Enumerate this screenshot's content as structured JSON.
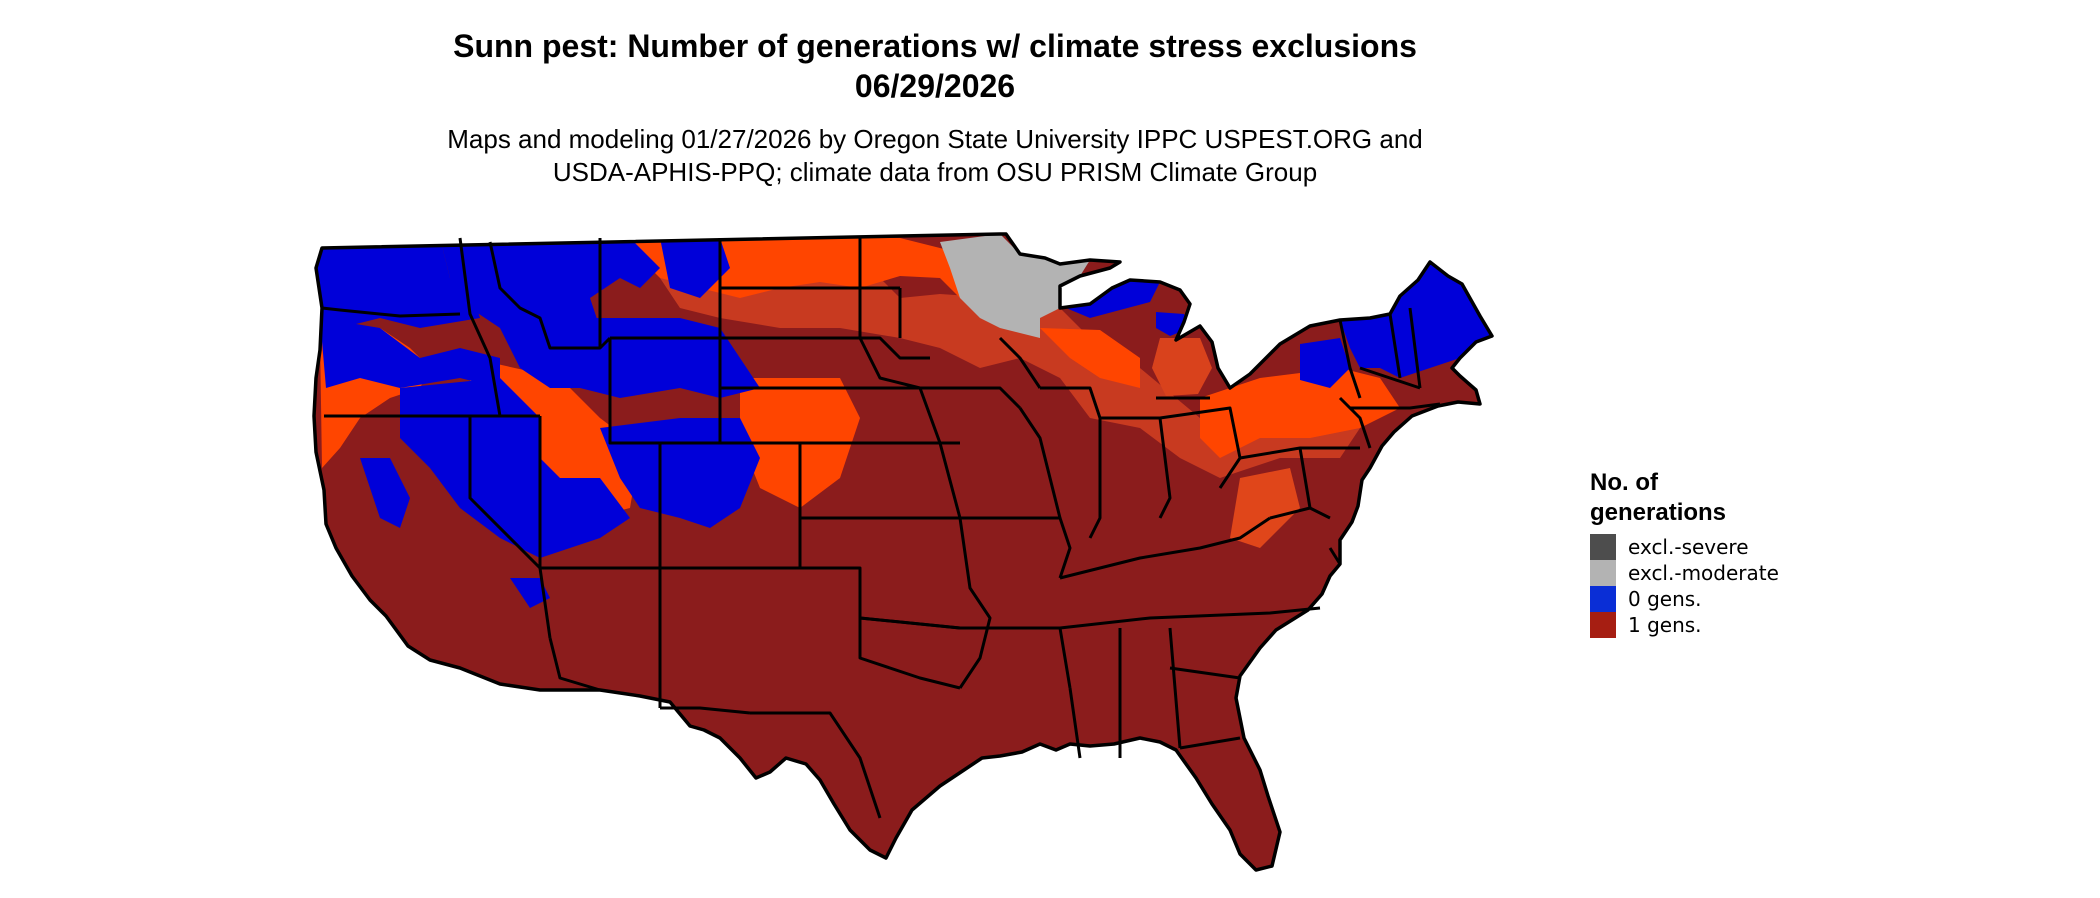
{
  "title": {
    "line1": "Sunn pest: Number of generations w/ climate stress exclusions",
    "line2": "06/29/2026"
  },
  "subtitle": {
    "line1": "Maps and modeling 01/27/2026 by Oregon State University IPPC USPEST.ORG and",
    "line2": "USDA-APHIS-PPQ; climate data from OSU PRISM Climate Group"
  },
  "map": {
    "region": "conterminous United States",
    "colors": {
      "excl_severe": "#4d4d4d",
      "excl_moderate": "#b3b3b3",
      "zero_gens": "#0000d9",
      "one_gen_light": "#ff4500",
      "one_gen_mid": "#c83a20",
      "one_gen": "#8b1c1c",
      "state_borders": "#000000"
    }
  },
  "legend": {
    "title_line1": "No. of",
    "title_line2": "generations",
    "items": [
      {
        "label": "excl.-severe",
        "color": "#4d4d4d"
      },
      {
        "label": "excl.-moderate",
        "color": "#b3b3b3"
      },
      {
        "label": "0 gens.",
        "color": "#0a2ed6"
      },
      {
        "label": "1 gens.",
        "color": "#a61e12"
      }
    ]
  }
}
